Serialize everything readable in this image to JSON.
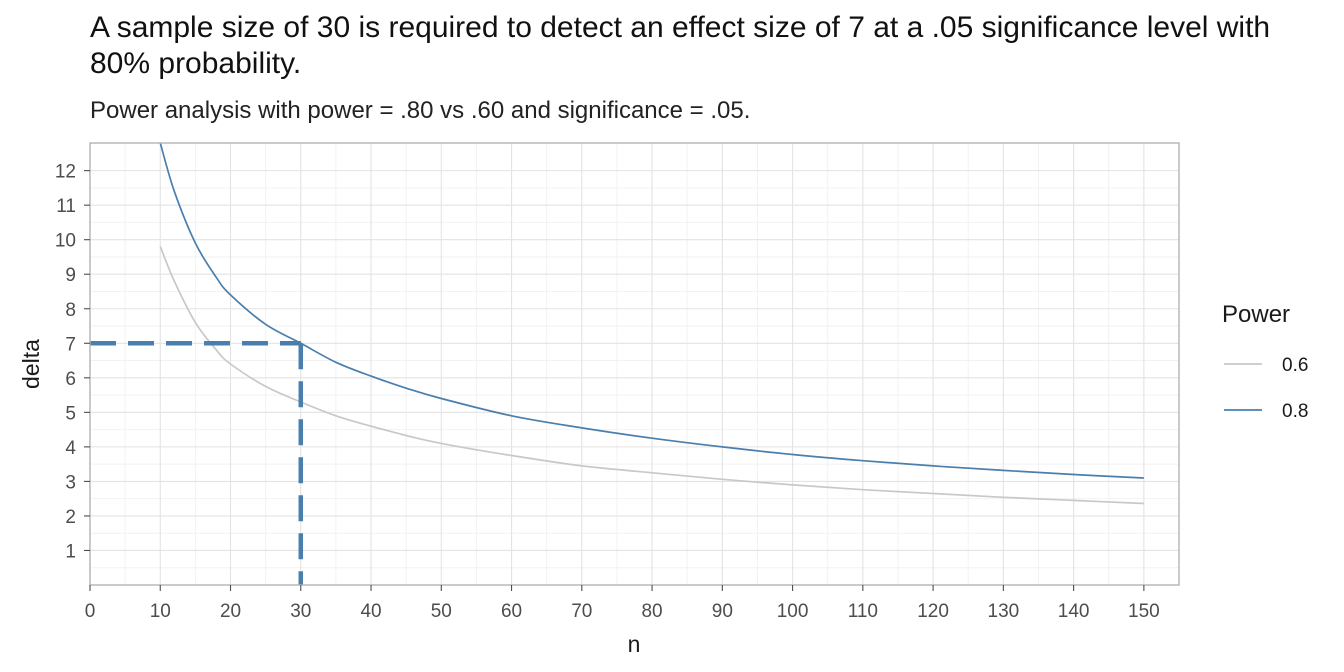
{
  "chart_data": {
    "type": "line",
    "title": "A sample size of 30 is required to detect an effect size of 7 at a .05 significance level with 80% probability.",
    "subtitle": "Power analysis with power = .80 vs .60 and significance = .05.",
    "xlabel": "n",
    "ylabel": "delta",
    "xlim": [
      0,
      155
    ],
    "ylim": [
      0,
      12.8
    ],
    "x_ticks": [
      0,
      10,
      20,
      30,
      40,
      50,
      60,
      70,
      80,
      90,
      100,
      110,
      120,
      130,
      140,
      150
    ],
    "y_ticks": [
      1,
      2,
      3,
      4,
      5,
      6,
      7,
      8,
      9,
      10,
      11,
      12
    ],
    "grid": true,
    "legend": {
      "title": "Power",
      "placement": "right"
    },
    "series": [
      {
        "name": "0.6",
        "color": "#c8c8c8",
        "x": [
          10,
          12,
          15,
          18,
          20,
          25,
          30,
          35,
          40,
          45,
          50,
          60,
          70,
          80,
          90,
          100,
          110,
          120,
          130,
          140,
          150
        ],
        "y": [
          9.8,
          8.8,
          7.6,
          6.8,
          6.4,
          5.75,
          5.3,
          4.9,
          4.6,
          4.33,
          4.1,
          3.75,
          3.45,
          3.25,
          3.06,
          2.9,
          2.76,
          2.65,
          2.54,
          2.45,
          2.36
        ]
      },
      {
        "name": "0.8",
        "color": "#4a7fad",
        "x": [
          10,
          12,
          15,
          18,
          20,
          25,
          30,
          35,
          40,
          45,
          50,
          60,
          70,
          80,
          90,
          100,
          110,
          120,
          130,
          140,
          150
        ],
        "y": [
          12.8,
          11.4,
          9.9,
          8.9,
          8.4,
          7.55,
          7.0,
          6.45,
          6.05,
          5.7,
          5.4,
          4.9,
          4.55,
          4.25,
          4.0,
          3.78,
          3.6,
          3.45,
          3.32,
          3.2,
          3.1
        ]
      }
    ],
    "annotation": {
      "x": 30,
      "y": 7,
      "color": "#4a7fad",
      "style": "dashed"
    }
  }
}
